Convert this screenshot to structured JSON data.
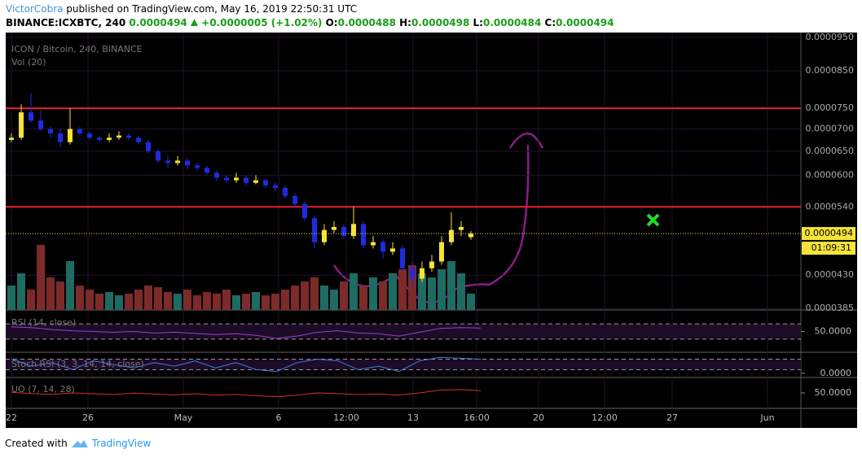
{
  "header": {
    "author": "VictorCobra",
    "published": " published on TradingView.com, May 16, 2019 22:50:31 UTC",
    "symbol": "BINANCE:ICXBTC, 240",
    "last": "0.0000494",
    "change": "+0.0000005 (+1.02%)",
    "o_label": "O:",
    "o": "0.0000488",
    "h_label": "H:",
    "h": "0.0000498",
    "l_label": "L:",
    "l": "0.0000484",
    "c_label": "C:",
    "c": "0.0000494"
  },
  "chart_data": {
    "type": "candlestick",
    "title": "ICON / Bitcoin, 240, BINANCE",
    "volume_label": "Vol (20)",
    "log_scale": true,
    "up_color": "#f5e33a",
    "down_color": "#1f2be0",
    "volume_up_color": "#1e6b62",
    "volume_down_color": "#7d2a2a",
    "ylim": [
      3.85e-05,
      9.5e-05
    ],
    "yticks": [
      {
        "value": 9.5e-05,
        "label": "0.0000950"
      },
      {
        "value": 8.5e-05,
        "label": "0.0000850"
      },
      {
        "value": 7.5e-05,
        "label": "0.0000750"
      },
      {
        "value": 7e-05,
        "label": "0.0000700"
      },
      {
        "value": 6.5e-05,
        "label": "0.0000650"
      },
      {
        "value": 6e-05,
        "label": "0.0000600"
      },
      {
        "value": 5.4e-05,
        "label": "0.0000540"
      },
      {
        "value": 4.3e-05,
        "label": "0.0000430"
      },
      {
        "value": 3.85e-05,
        "label": "0.0000385"
      }
    ],
    "x_labels": [
      "22",
      "26",
      "May",
      "6",
      "12:00",
      "13",
      "16:00",
      "20",
      "12:00",
      "27",
      "Jun"
    ],
    "open": [
      6.75e-05,
      6.8e-05,
      7.4e-05,
      7.2e-05,
      7e-05,
      6.9e-05,
      6.7e-05,
      7e-05,
      6.9e-05,
      6.8e-05,
      6.75e-05,
      6.8e-05,
      6.85e-05,
      6.8e-05,
      6.7e-05,
      6.5e-05,
      6.3e-05,
      6.25e-05,
      6.3e-05,
      6.2e-05,
      6.15e-05,
      6.05e-05,
      5.95e-05,
      5.9e-05,
      5.95e-05,
      5.85e-05,
      5.9e-05,
      5.8e-05,
      5.75e-05,
      5.6e-05,
      5.45e-05,
      5.2e-05,
      4.8e-05,
      5e-05,
      5.05e-05,
      4.9e-05,
      5.1e-05,
      4.75e-05,
      4.8e-05,
      4.65e-05,
      4.7e-05,
      4.4e-05,
      4.25e-05,
      4.4e-05,
      4.5e-05,
      4.8e-05,
      5e-05,
      4.88e-05
    ],
    "high": [
      6.9e-05,
      7.6e-05,
      7.9e-05,
      7.45e-05,
      7.05e-05,
      7e-05,
      7.5e-05,
      7.05e-05,
      6.95e-05,
      6.85e-05,
      6.9e-05,
      6.95e-05,
      6.9e-05,
      6.85e-05,
      6.75e-05,
      6.55e-05,
      6.4e-05,
      6.4e-05,
      6.35e-05,
      6.25e-05,
      6.2e-05,
      6.1e-05,
      6e-05,
      6.05e-05,
      6e-05,
      6e-05,
      5.92e-05,
      5.85e-05,
      5.8e-05,
      5.65e-05,
      5.5e-05,
      5.25e-05,
      5.1e-05,
      5.15e-05,
      5.1e-05,
      5.4e-05,
      5.15e-05,
      4.9e-05,
      4.85e-05,
      4.8e-05,
      4.75e-05,
      4.5e-05,
      4.5e-05,
      4.6e-05,
      4.9e-05,
      5.3e-05,
      5.15e-05,
      4.98e-05
    ],
    "low": [
      6.7e-05,
      6.75e-05,
      7.15e-05,
      6.95e-05,
      6.8e-05,
      6.6e-05,
      6.65e-05,
      6.85e-05,
      6.75e-05,
      6.7e-05,
      6.7e-05,
      6.75e-05,
      6.75e-05,
      6.65e-05,
      6.45e-05,
      6.25e-05,
      6.15e-05,
      6.2e-05,
      6.12e-05,
      6.08e-05,
      6e-05,
      5.9e-05,
      5.85e-05,
      5.85e-05,
      5.8e-05,
      5.82e-05,
      5.75e-05,
      5.7e-05,
      5.55e-05,
      5.4e-05,
      5.15e-05,
      4.7e-05,
      4.75e-05,
      4.95e-05,
      4.85e-05,
      4.85e-05,
      4.7e-05,
      4.7e-05,
      4.55e-05,
      4.6e-05,
      4.35e-05,
      4.15e-05,
      4.2e-05,
      4.35e-05,
      4.45e-05,
      4.75e-05,
      4.9e-05,
      4.84e-05
    ],
    "close": [
      6.8e-05,
      7.4e-05,
      7.2e-05,
      7e-05,
      6.9e-05,
      6.7e-05,
      7e-05,
      6.9e-05,
      6.8e-05,
      6.75e-05,
      6.8e-05,
      6.85e-05,
      6.8e-05,
      6.7e-05,
      6.5e-05,
      6.3e-05,
      6.25e-05,
      6.3e-05,
      6.2e-05,
      6.15e-05,
      6.05e-05,
      5.95e-05,
      5.9e-05,
      5.95e-05,
      5.85e-05,
      5.9e-05,
      5.8e-05,
      5.75e-05,
      5.6e-05,
      5.45e-05,
      5.2e-05,
      4.8e-05,
      5e-05,
      5.05e-05,
      4.9e-05,
      5.1e-05,
      4.75e-05,
      4.8e-05,
      4.65e-05,
      4.7e-05,
      4.4e-05,
      4.25e-05,
      4.4e-05,
      4.5e-05,
      4.8e-05,
      5e-05,
      5.05e-05,
      4.94e-05
    ],
    "volume": [
      30,
      45,
      25,
      80,
      40,
      35,
      60,
      30,
      25,
      20,
      22,
      18,
      20,
      25,
      30,
      28,
      22,
      20,
      25,
      18,
      22,
      20,
      25,
      18,
      20,
      22,
      18,
      20,
      25,
      30,
      35,
      40,
      30,
      25,
      35,
      45,
      30,
      40,
      35,
      45,
      50,
      55,
      45,
      40,
      50,
      60,
      45,
      20
    ],
    "levels": [
      7.5e-05,
      5.4e-05
    ],
    "level_color": "#e8202a",
    "current": {
      "value": 4.94e-05,
      "label": "0.0000494"
    },
    "countdown": "01:09:31",
    "indicators": [
      {
        "name": "RSI (14, close)",
        "color": "#9c3fd0",
        "ylim": [
          0,
          100
        ],
        "bands": [
          30,
          70
        ],
        "tick": {
          "value": 50,
          "label": "50.0000"
        },
        "values": [
          62,
          60,
          55,
          52,
          50,
          48,
          50,
          46,
          48,
          45,
          42,
          44,
          40,
          32,
          38,
          48,
          52,
          46,
          44,
          38,
          48,
          58,
          60,
          59
        ]
      },
      {
        "name": "Stoch RSI (3, 3, 14, 14, close)",
        "color": "#3f7fe0",
        "ylim": [
          -15,
          110
        ],
        "bands": [
          20,
          80
        ],
        "tick": {
          "value": 0,
          "label": "0.0000"
        },
        "values": [
          80,
          40,
          60,
          20,
          70,
          50,
          30,
          60,
          40,
          70,
          30,
          60,
          20,
          10,
          60,
          80,
          70,
          20,
          40,
          10,
          70,
          90,
          85,
          80
        ]
      },
      {
        "name": "UO (7, 14, 28)",
        "color": "#d32f2f",
        "ylim": [
          0,
          100
        ],
        "tick": {
          "value": 50,
          "label": "50.0000"
        },
        "values": [
          52,
          48,
          45,
          50,
          47,
          44,
          49,
          46,
          43,
          47,
          42,
          45,
          40,
          36,
          42,
          50,
          48,
          44,
          46,
          42,
          50,
          60,
          62,
          58
        ]
      }
    ]
  },
  "footer": {
    "text": "Created with",
    "brand": "TradingView"
  }
}
